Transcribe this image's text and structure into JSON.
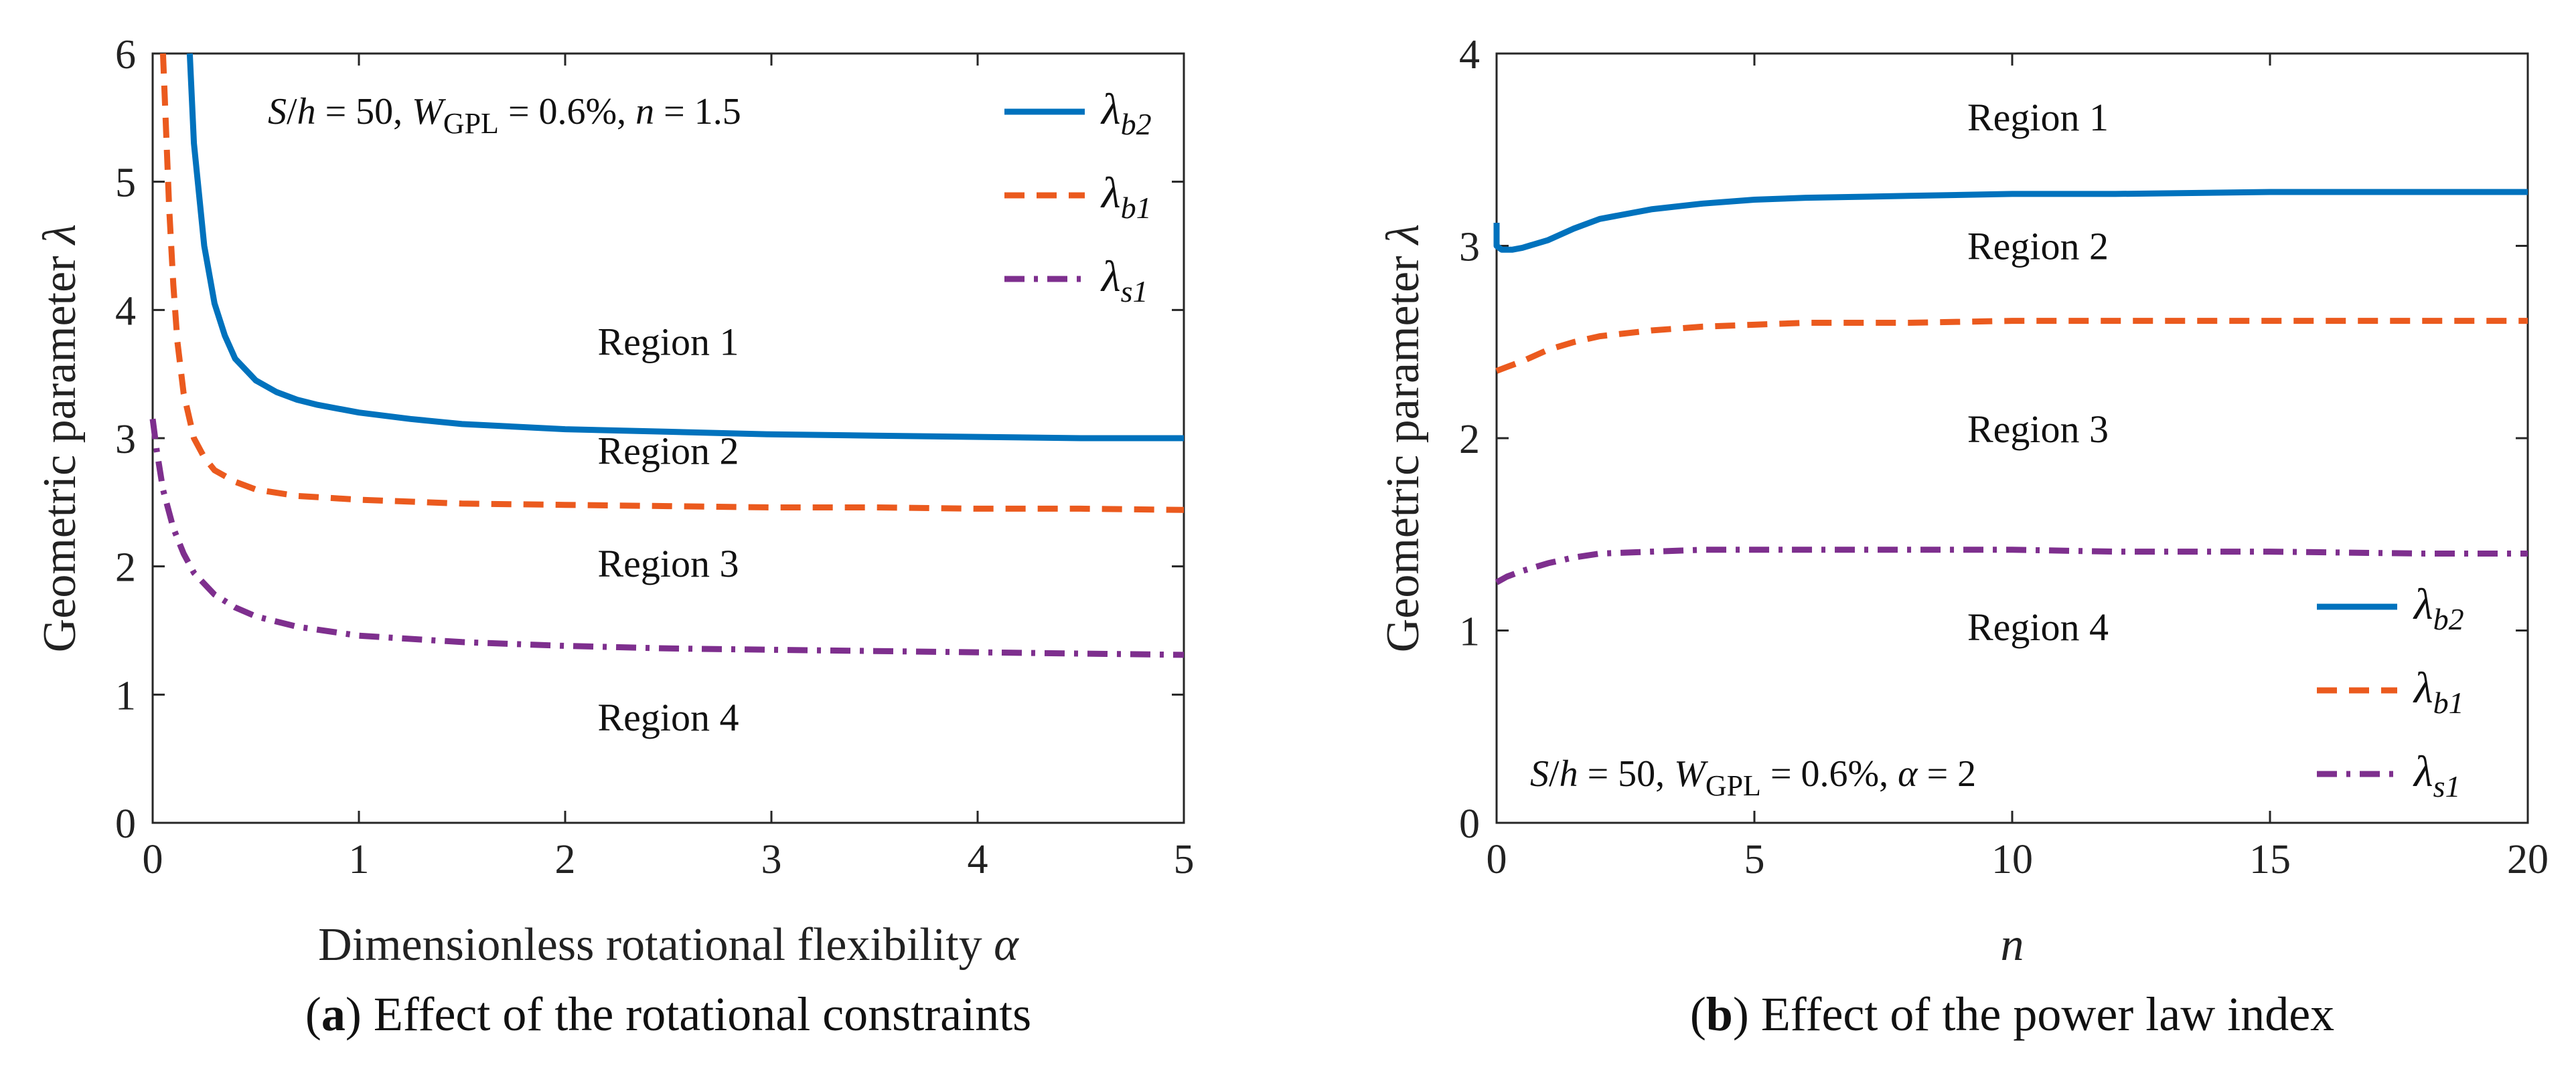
{
  "chart_data": [
    {
      "type": "line",
      "panel": "a",
      "caption_letter": "a",
      "caption_text": "Effect of the rotational constraints",
      "xlabel": "Dimensionless rotational flexibility",
      "xlabel_symbol": "α",
      "ylabel": "Geometric parameter",
      "ylabel_symbol": "λ",
      "xlim": [
        0,
        5
      ],
      "ylim": [
        0,
        6
      ],
      "xticks": [
        "0",
        "1",
        "2",
        "3",
        "4",
        "5"
      ],
      "yticks": [
        "0",
        "1",
        "2",
        "3",
        "4",
        "5",
        "6"
      ],
      "annotation": "S/h = 50, WGPL = 0.6%, n = 1.5",
      "annotation_parts": {
        "S": "S",
        "slash": "/",
        "h": "h",
        "eq1": " = 50, ",
        "W": "W",
        "Wsub": "GPL",
        "eq2": " = 0.6%, ",
        "n": "n",
        "eq3": " = 1.5"
      },
      "regions": [
        {
          "label": "Region 1",
          "x": 2.5,
          "y": 3.65
        },
        {
          "label": "Region 2",
          "x": 2.5,
          "y": 2.8
        },
        {
          "label": "Region 3",
          "x": 2.5,
          "y": 1.92
        },
        {
          "label": "Region 4",
          "x": 2.5,
          "y": 0.72
        }
      ],
      "legend": {
        "position": "top-right"
      },
      "series": [
        {
          "name": "λb2",
          "symbol": "λ",
          "sub": "b2",
          "style": "solid",
          "color": "#0072BD",
          "x": [
            0.18,
            0.2,
            0.25,
            0.3,
            0.35,
            0.4,
            0.5,
            0.6,
            0.7,
            0.8,
            1.0,
            1.25,
            1.5,
            2.0,
            2.5,
            3.0,
            3.5,
            4.0,
            4.5,
            5.0
          ],
          "y": [
            6.0,
            5.3,
            4.5,
            4.05,
            3.8,
            3.62,
            3.45,
            3.36,
            3.3,
            3.26,
            3.2,
            3.15,
            3.11,
            3.07,
            3.05,
            3.03,
            3.02,
            3.01,
            3.0,
            3.0
          ]
        },
        {
          "name": "λb1",
          "symbol": "λ",
          "sub": "b1",
          "style": "dashed",
          "color": "#EB5A1E",
          "x": [
            0.05,
            0.06,
            0.08,
            0.1,
            0.12,
            0.15,
            0.2,
            0.25,
            0.3,
            0.4,
            0.5,
            0.7,
            1.0,
            1.5,
            2.0,
            2.5,
            3.0,
            3.5,
            4.0,
            4.5,
            5.0
          ],
          "y": [
            6.0,
            5.6,
            4.8,
            4.2,
            3.75,
            3.35,
            3.0,
            2.85,
            2.75,
            2.66,
            2.6,
            2.55,
            2.52,
            2.49,
            2.48,
            2.47,
            2.46,
            2.46,
            2.45,
            2.45,
            2.44
          ]
        },
        {
          "name": "λs1",
          "symbol": "λ",
          "sub": "s1",
          "style": "dashdot",
          "color": "#7E2F8E",
          "x": [
            0.0,
            0.02,
            0.05,
            0.1,
            0.15,
            0.2,
            0.3,
            0.4,
            0.5,
            0.7,
            1.0,
            1.5,
            2.0,
            2.5,
            3.0,
            3.5,
            4.0,
            4.5,
            5.0
          ],
          "y": [
            3.15,
            2.9,
            2.6,
            2.3,
            2.1,
            1.95,
            1.78,
            1.68,
            1.61,
            1.53,
            1.46,
            1.41,
            1.38,
            1.36,
            1.35,
            1.34,
            1.33,
            1.32,
            1.31
          ]
        }
      ]
    },
    {
      "type": "line",
      "panel": "b",
      "caption_letter": "b",
      "caption_text": "Effect of the power law index",
      "xlabel": "",
      "xlabel_symbol": "n",
      "ylabel": "Geometric parameter",
      "ylabel_symbol": "λ",
      "xlim": [
        0,
        20
      ],
      "ylim": [
        0,
        4
      ],
      "xticks": [
        "0",
        "5",
        "10",
        "15",
        "20"
      ],
      "yticks": [
        "0",
        "1",
        "2",
        "3",
        "4"
      ],
      "annotation": "S/h = 50, WGPL = 0.6%, α = 2",
      "annotation_parts": {
        "S": "S",
        "slash": "/",
        "h": "h",
        "eq1": " = 50, ",
        "W": "W",
        "Wsub": "GPL",
        "eq2": " = 0.6%, ",
        "n": "α",
        "eq3": " = 2"
      },
      "regions": [
        {
          "label": "Region 1",
          "x": 10.5,
          "y": 3.6
        },
        {
          "label": "Region 2",
          "x": 10.5,
          "y": 2.93
        },
        {
          "label": "Region 3",
          "x": 10.5,
          "y": 1.98
        },
        {
          "label": "Region 4",
          "x": 10.5,
          "y": 0.95
        }
      ],
      "legend": {
        "position": "bottom-right"
      },
      "series": [
        {
          "name": "λb2",
          "symbol": "λ",
          "sub": "b2",
          "style": "solid",
          "color": "#0072BD",
          "x": [
            0.0,
            0.0,
            0.1,
            0.3,
            0.5,
            1.0,
            1.5,
            2.0,
            3.0,
            4.0,
            5.0,
            6.0,
            8.0,
            10.0,
            12.0,
            15.0,
            18.0,
            20.0
          ],
          "y": [
            3.12,
            3.0,
            2.98,
            2.98,
            2.99,
            3.03,
            3.09,
            3.14,
            3.19,
            3.22,
            3.24,
            3.25,
            3.26,
            3.27,
            3.27,
            3.28,
            3.28,
            3.28
          ]
        },
        {
          "name": "λb1",
          "symbol": "λ",
          "sub": "b1",
          "style": "dashed",
          "color": "#EB5A1E",
          "x": [
            0.0,
            0.2,
            0.5,
            1.0,
            1.5,
            2.0,
            3.0,
            4.0,
            5.0,
            6.0,
            8.0,
            10.0,
            12.0,
            15.0,
            18.0,
            20.0
          ],
          "y": [
            2.35,
            2.37,
            2.4,
            2.46,
            2.5,
            2.53,
            2.56,
            2.58,
            2.59,
            2.6,
            2.6,
            2.61,
            2.61,
            2.61,
            2.61,
            2.61
          ]
        },
        {
          "name": "λs1",
          "symbol": "λ",
          "sub": "s1",
          "style": "dashdot",
          "color": "#7E2F8E",
          "x": [
            0.0,
            0.2,
            0.5,
            1.0,
            1.5,
            2.0,
            3.0,
            4.0,
            5.0,
            6.0,
            8.0,
            10.0,
            12.0,
            15.0,
            18.0,
            20.0
          ],
          "y": [
            1.25,
            1.28,
            1.31,
            1.35,
            1.38,
            1.4,
            1.41,
            1.42,
            1.42,
            1.42,
            1.42,
            1.42,
            1.41,
            1.41,
            1.4,
            1.4
          ]
        }
      ]
    }
  ]
}
